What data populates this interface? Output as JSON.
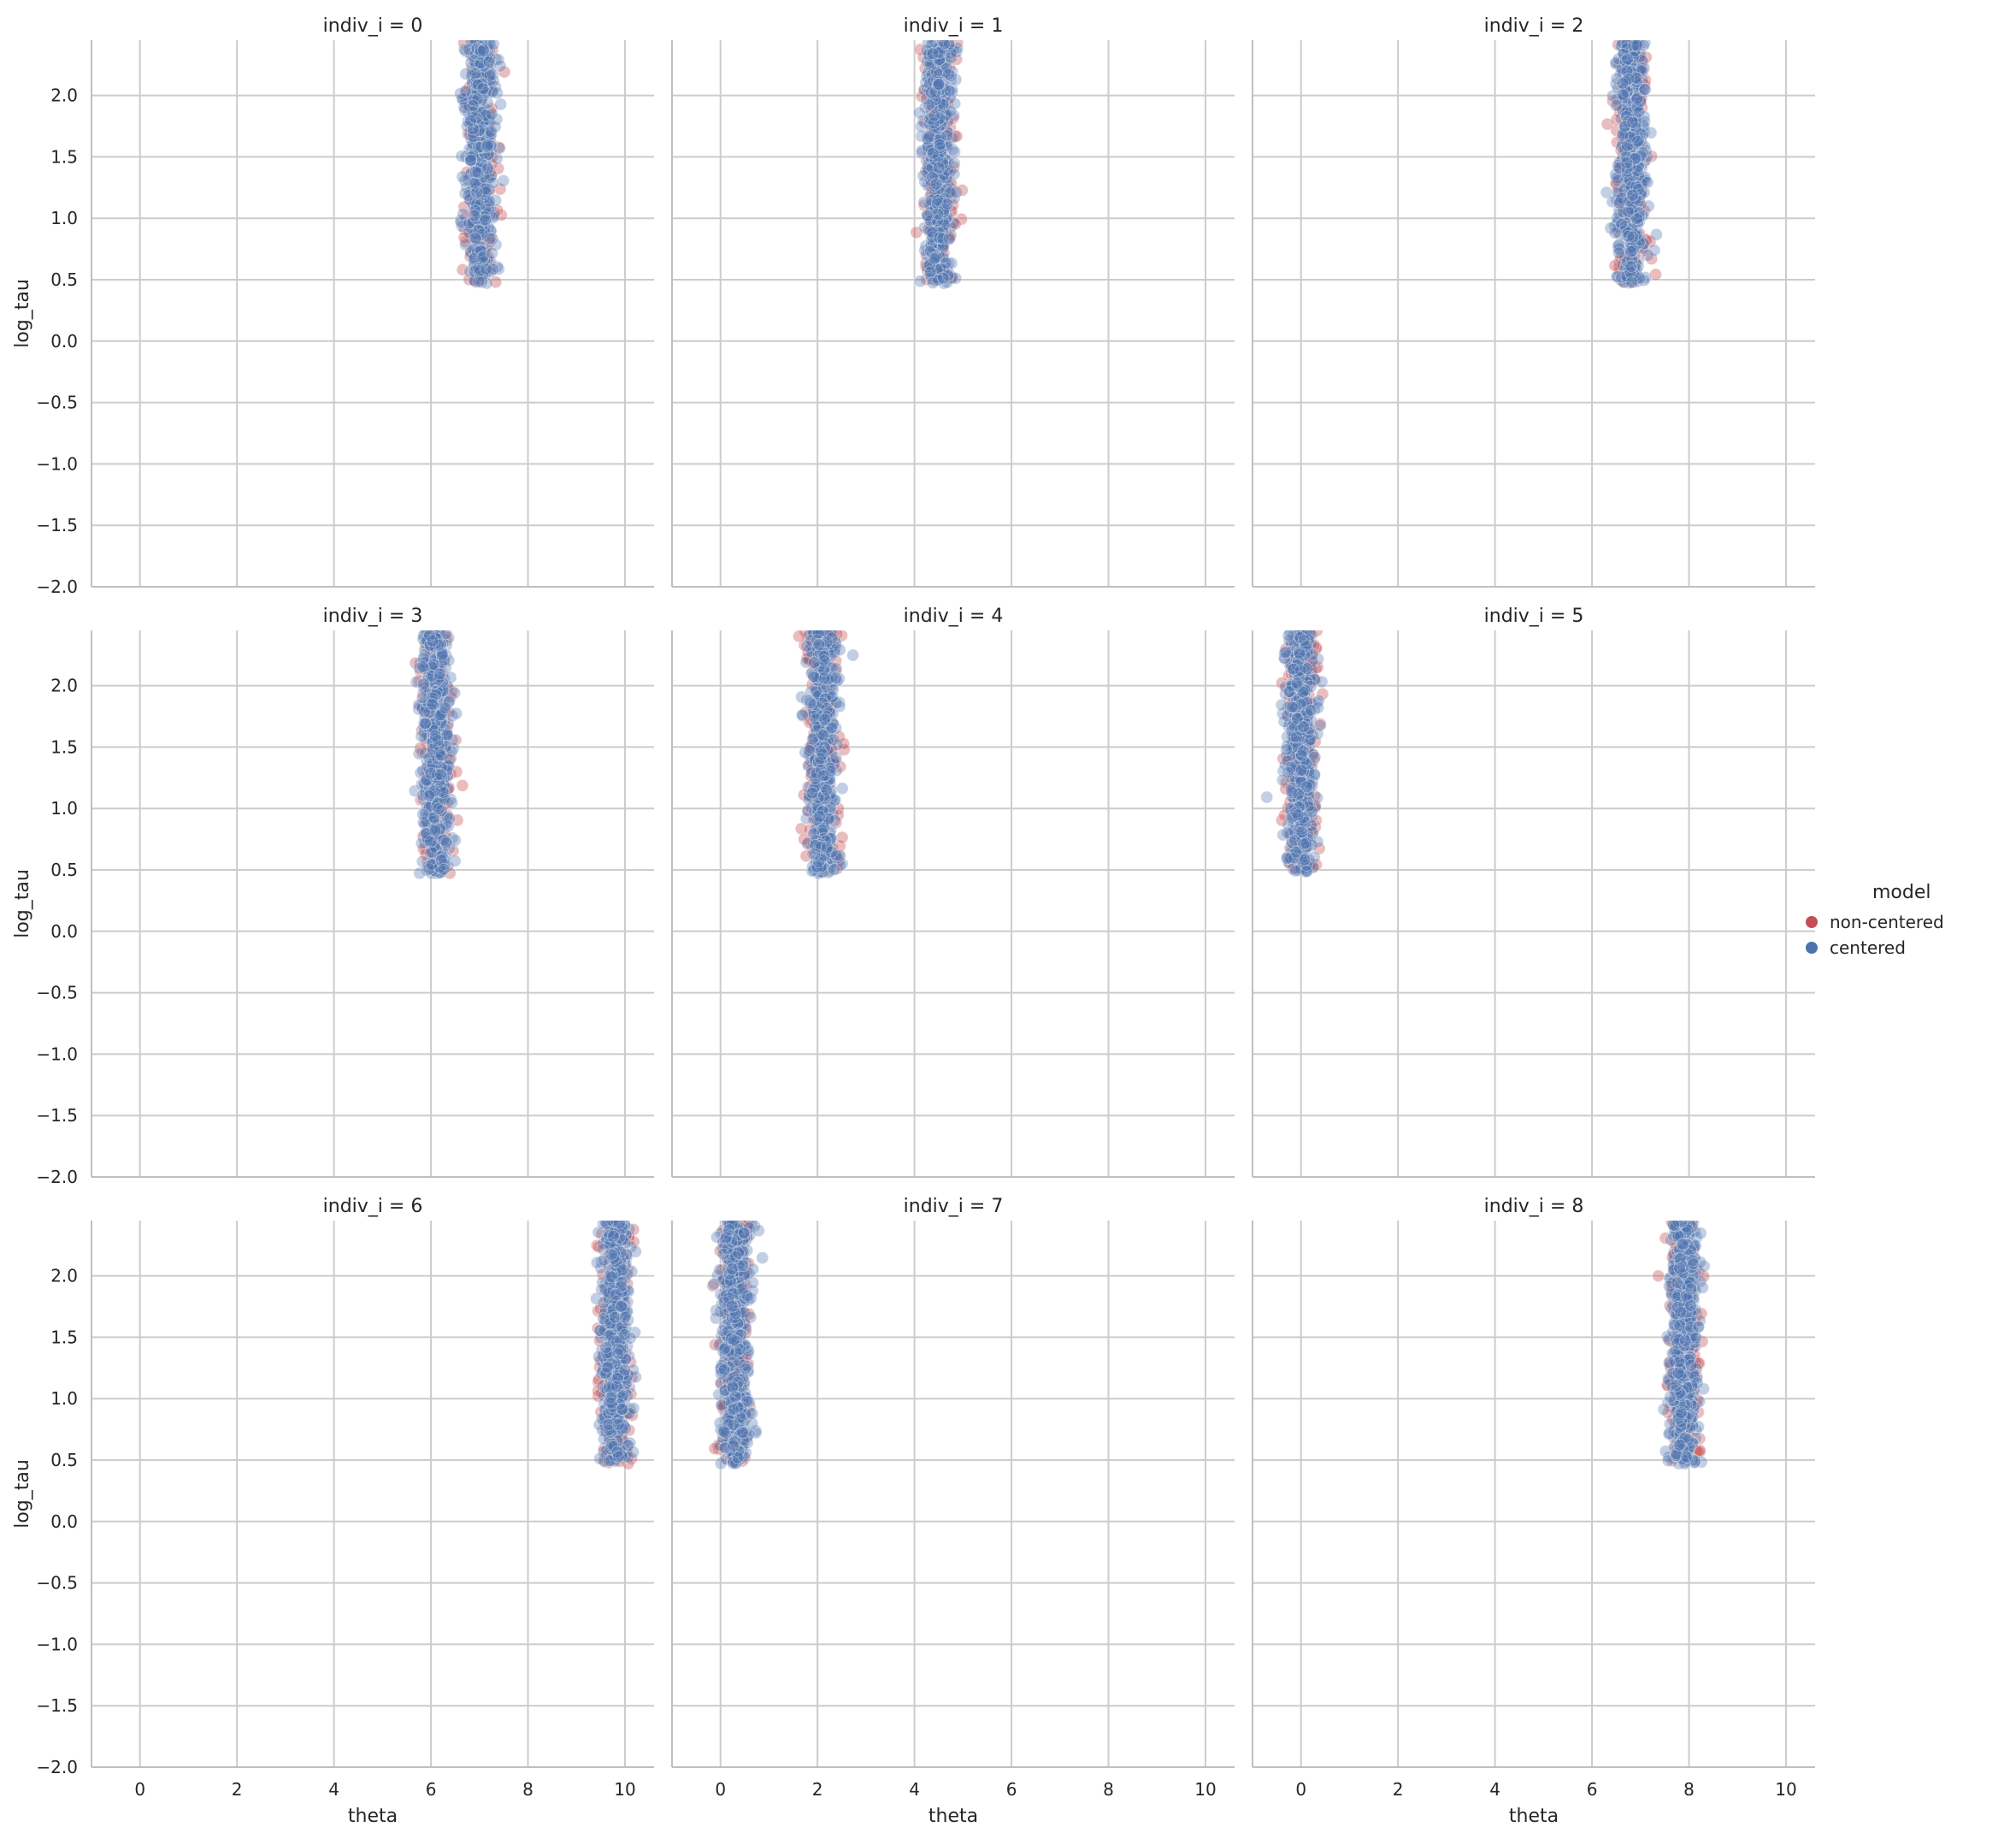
{
  "chart_data": {
    "type": "scatter",
    "layout": "facet-grid 3x3",
    "facet_variable": "indiv_i",
    "xlabel": "theta",
    "ylabel": "log_tau",
    "xlim": [
      -1,
      10.6
    ],
    "ylim": [
      -2.0,
      2.45
    ],
    "x_ticks": [
      0,
      2,
      4,
      6,
      8,
      10
    ],
    "x_tick_labels": [
      "0",
      "2",
      "4",
      "6",
      "8",
      "10"
    ],
    "y_ticks": [
      -2.0,
      -1.5,
      -1.0,
      -0.5,
      0.0,
      0.5,
      1.0,
      1.5,
      2.0
    ],
    "y_tick_labels": [
      "−2.0",
      "−1.5",
      "−1.0",
      "−0.5",
      "0.0",
      "0.5",
      "1.0",
      "1.5",
      "2.0"
    ],
    "grid": true,
    "legend": {
      "title": "model",
      "placement": "right",
      "entries": [
        {
          "label": "non-centered",
          "color": "#c44e52"
        },
        {
          "label": "centered",
          "color": "#4c72b0"
        }
      ]
    },
    "panels": [
      {
        "title": "indiv_i = 0",
        "theta_center": 7.0,
        "theta_spread": 0.16,
        "log_tau_range": [
          0.47,
          2.45
        ]
      },
      {
        "title": "indiv_i = 1",
        "theta_center": 4.5,
        "theta_spread": 0.16,
        "log_tau_range": [
          0.47,
          2.45
        ]
      },
      {
        "title": "indiv_i = 2",
        "theta_center": 6.8,
        "theta_spread": 0.16,
        "log_tau_range": [
          0.47,
          2.45
        ]
      },
      {
        "title": "indiv_i = 3",
        "theta_center": 6.1,
        "theta_spread": 0.16,
        "log_tau_range": [
          0.47,
          2.45
        ]
      },
      {
        "title": "indiv_i = 4",
        "theta_center": 2.1,
        "theta_spread": 0.16,
        "log_tau_range": [
          0.47,
          2.45
        ]
      },
      {
        "title": "indiv_i = 5",
        "theta_center": 0.0,
        "theta_spread": 0.16,
        "log_tau_range": [
          0.47,
          2.45
        ]
      },
      {
        "title": "indiv_i = 6",
        "theta_center": 9.8,
        "theta_spread": 0.16,
        "log_tau_range": [
          0.47,
          2.45
        ]
      },
      {
        "title": "indiv_i = 7",
        "theta_center": 0.3,
        "theta_spread": 0.16,
        "log_tau_range": [
          0.47,
          2.45
        ]
      },
      {
        "title": "indiv_i = 8",
        "theta_center": 7.9,
        "theta_spread": 0.16,
        "log_tau_range": [
          0.47,
          2.45
        ]
      }
    ]
  }
}
